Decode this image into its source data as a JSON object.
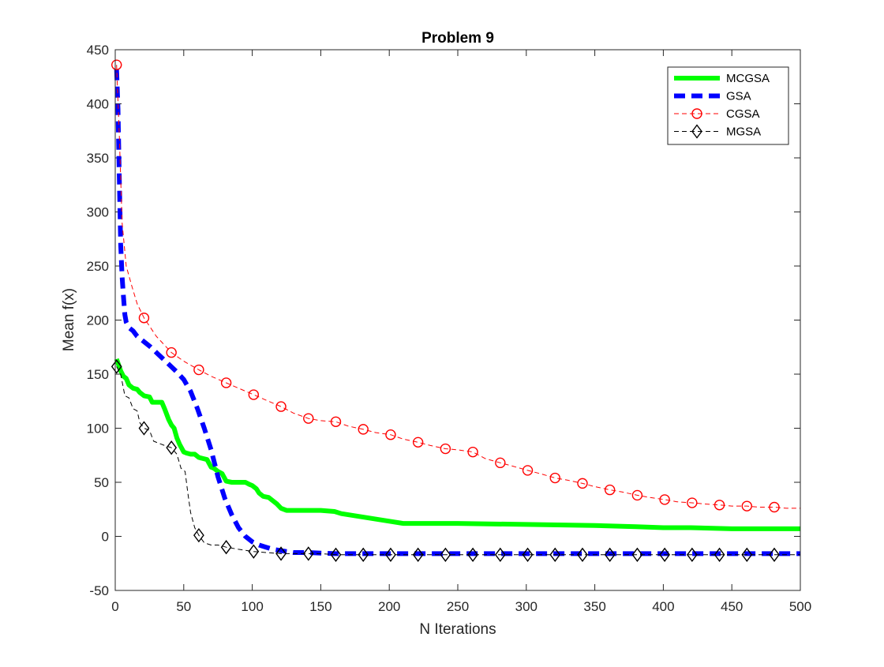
{
  "chart_data": {
    "type": "line",
    "title": "Problem 9",
    "xlabel": "N Iterations",
    "ylabel": "Mean f(x)",
    "xlim": [
      0,
      500
    ],
    "ylim": [
      -50,
      450
    ],
    "xticks": [
      0,
      50,
      100,
      150,
      200,
      250,
      300,
      350,
      400,
      450,
      500
    ],
    "yticks": [
      -50,
      0,
      50,
      100,
      150,
      200,
      250,
      300,
      350,
      400,
      450
    ],
    "grid": false,
    "legend_position": "top-right",
    "series": [
      {
        "name": "MCGSA",
        "color": "#00ff00",
        "line_style": "solid",
        "marker": "none",
        "x": [
          1,
          4,
          6,
          8,
          10,
          13,
          16,
          18,
          21,
          25,
          27,
          30,
          34,
          36,
          39,
          41,
          43,
          45,
          47,
          50,
          52,
          55,
          58,
          61,
          64,
          67,
          70,
          72,
          75,
          78,
          81,
          85,
          90,
          95,
          98,
          100,
          103,
          105,
          108,
          112,
          115,
          118,
          121,
          125,
          130,
          140,
          150,
          160,
          165,
          170,
          180,
          190,
          200,
          210,
          220,
          250,
          300,
          350,
          380,
          400,
          420,
          450,
          480,
          500
        ],
        "y": [
          164,
          153,
          148,
          146,
          140,
          137,
          136,
          133,
          130,
          129,
          124,
          124,
          124,
          118,
          108,
          103,
          100,
          91,
          85,
          78,
          77,
          76,
          76,
          73,
          72,
          71,
          64,
          63,
          60,
          58,
          51,
          50,
          50,
          50,
          48,
          47,
          44,
          40,
          37,
          36,
          33,
          30,
          26,
          24,
          24,
          24,
          24,
          23,
          21,
          20,
          18,
          16,
          14,
          12,
          12,
          12,
          11,
          10,
          9,
          8,
          8,
          7,
          7,
          7
        ]
      },
      {
        "name": "GSA",
        "color": "#0000ff",
        "line_style": "dashed",
        "marker": "none",
        "x": [
          1,
          2,
          3,
          4,
          5,
          6,
          7,
          8,
          10,
          13,
          16,
          18,
          20,
          23,
          26,
          30,
          35,
          40,
          45,
          50,
          55,
          60,
          65,
          70,
          75,
          80,
          85,
          90,
          95,
          100,
          105,
          110,
          115,
          120,
          125,
          130,
          140,
          160,
          200,
          300,
          400,
          500
        ],
        "y": [
          432,
          395,
          330,
          270,
          240,
          222,
          205,
          198,
          193,
          190,
          185,
          183,
          181,
          178,
          175,
          170,
          164,
          158,
          152,
          145,
          134,
          118,
          100,
          80,
          55,
          35,
          20,
          8,
          0,
          -5,
          -8,
          -10,
          -12,
          -13,
          -14,
          -15,
          -15,
          -16,
          -16,
          -16,
          -16,
          -16
        ]
      },
      {
        "name": "CGSA",
        "color": "#ff0000",
        "line_style": "dashed",
        "marker": "circle",
        "x": [
          1,
          3,
          5,
          8,
          12,
          16,
          21,
          30,
          41,
          50,
          61,
          70,
          81,
          90,
          101,
          110,
          121,
          130,
          141,
          150,
          161,
          170,
          181,
          190,
          201,
          210,
          221,
          230,
          241,
          250,
          261,
          270,
          281,
          290,
          301,
          310,
          321,
          330,
          341,
          350,
          361,
          370,
          381,
          390,
          401,
          410,
          421,
          430,
          441,
          450,
          461,
          470,
          481,
          490,
          500
        ],
        "y": [
          436,
          370,
          290,
          250,
          232,
          215,
          202,
          185,
          170,
          162,
          154,
          148,
          142,
          137,
          131,
          126,
          120,
          114,
          109,
          107,
          106,
          102,
          99,
          96,
          94,
          90,
          87,
          84,
          81,
          80,
          78,
          72,
          68,
          65,
          61,
          58,
          54,
          52,
          49,
          46,
          43,
          41,
          38,
          36,
          34,
          32,
          31,
          30,
          29,
          28,
          28,
          27,
          27,
          26,
          26
        ]
      },
      {
        "name": "MGSA",
        "color": "#000000",
        "line_style": "dashed",
        "marker": "diamond",
        "x": [
          1,
          4,
          7,
          10,
          13,
          16,
          18,
          21,
          25,
          28,
          32,
          36,
          41,
          45,
          48,
          51,
          53,
          55,
          58,
          61,
          65,
          70,
          75,
          81,
          90,
          101,
          110,
          121,
          130,
          141,
          150,
          161,
          181,
          201,
          221,
          241,
          261,
          281,
          301,
          321,
          341,
          361,
          381,
          401,
          421,
          441,
          461,
          481,
          500
        ],
        "y": [
          157,
          150,
          130,
          128,
          118,
          116,
          105,
          100,
          98,
          88,
          86,
          84,
          82,
          76,
          63,
          60,
          40,
          22,
          8,
          1,
          -6,
          -8,
          -8,
          -10,
          -12,
          -14,
          -15,
          -16,
          -16,
          -16,
          -16,
          -17,
          -17,
          -17,
          -17,
          -17,
          -17,
          -17,
          -17,
          -17,
          -17,
          -17,
          -17,
          -17,
          -17,
          -17,
          -17,
          -17,
          -17
        ]
      }
    ]
  }
}
